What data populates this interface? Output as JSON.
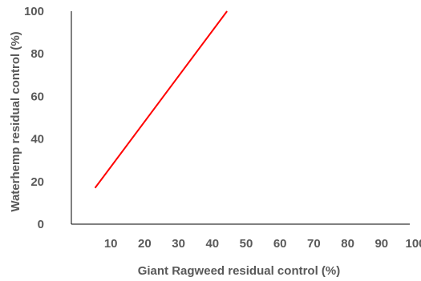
{
  "chart_data": {
    "type": "line",
    "title": "",
    "xlabel": "Giant Ragweed residual control (%)",
    "ylabel": "Waterhemp residual control (%)",
    "xlim": [
      0,
      100
    ],
    "ylim": [
      0,
      100
    ],
    "x_ticks": [
      10,
      20,
      30,
      40,
      50,
      60,
      70,
      80,
      90,
      100
    ],
    "y_ticks": [
      0,
      20,
      40,
      60,
      80,
      100
    ],
    "grid": false,
    "legend": "none",
    "series": [
      {
        "color": "#ff0000",
        "x": [
          7,
          46
        ],
        "y": [
          17,
          100
        ]
      }
    ]
  }
}
